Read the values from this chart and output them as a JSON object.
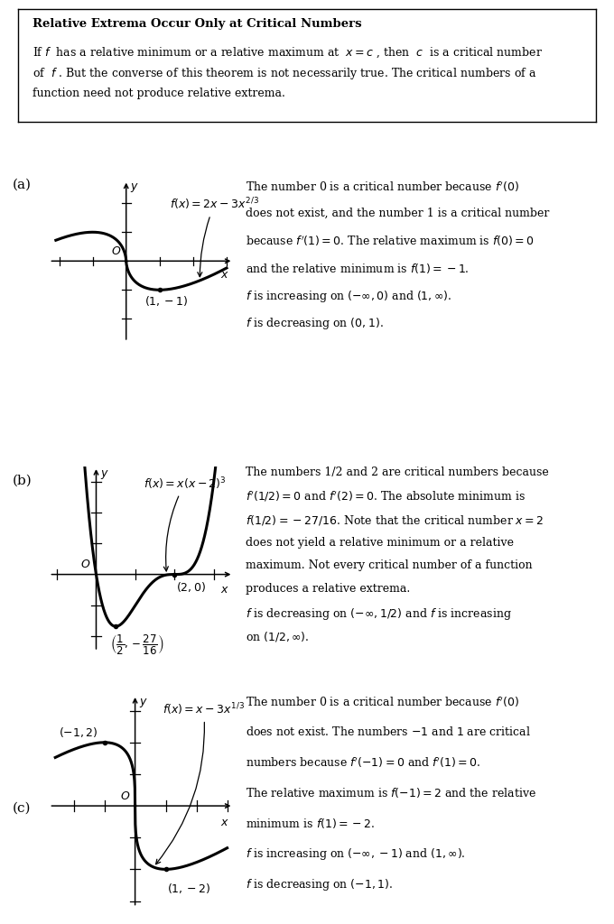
{
  "bg_color": "#ffffff",
  "box_title": "Relative Extrema Occur Only at Critical Numbers",
  "panel_labels": [
    "(a)",
    "(b)",
    "(c)"
  ],
  "panel_a_func": "$f(x) = 2x - 3x^{2/3}$",
  "panel_b_func": "$f(x) = x(x-2)^3$",
  "panel_c_func": "$f(x) = x - 3x^{1/3}$",
  "panel_a_text_lines": [
    "The number 0 is a critical number because $f'(0)$",
    "does not exist, and the number 1 is a critical number",
    "because $f'(1) = 0$. The relative maximum is $f(0) = 0$",
    "and the relative minimum is $f(1) = -1$.",
    "$f$ is increasing on $(-\\infty,0)$ and $(1,\\infty)$.",
    "$f$ is decreasing on $(0,1)$."
  ],
  "panel_b_text_lines": [
    "The numbers 1/2 and 2 are critical numbers because",
    "$f'(1/2) = 0$ and $f'(2) = 0$. The absolute minimum is",
    "$f(1/2) = -27/16$. Note that the critical number $x = 2$",
    "does not yield a relative minimum or a relative",
    "maximum. Not every critical number of a function",
    "produces a relative extrema.",
    "$f$ is decreasing on $(-\\infty,1/2)$ and $f$ is increasing",
    "on $(1/2,\\infty)$."
  ],
  "panel_c_text_lines": [
    "The number 0 is a critical number because $f'(0)$",
    "does not exist. The numbers $-1$ and $1$ are critical",
    "numbers because $f'(-1) = 0$ and $f'(1) = 0$.",
    "The relative maximum is $f(-1) = 2$ and the relative",
    "minimum is $f(1) = -2$.",
    "$f$ is increasing on $(-\\infty,-1)$ and $(1,\\infty)$.",
    "$f$ is decreasing on $(-1,1)$."
  ]
}
